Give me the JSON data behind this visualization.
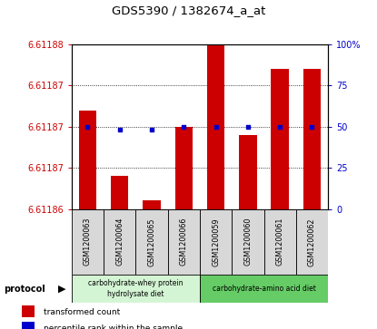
{
  "title": "GDS5390 / 1382674_a_at",
  "samples": [
    "GSM1200063",
    "GSM1200064",
    "GSM1200065",
    "GSM1200066",
    "GSM1200059",
    "GSM1200060",
    "GSM1200061",
    "GSM1200062"
  ],
  "transformed_count": [
    6.611872,
    6.611864,
    6.611861,
    6.61187,
    6.61188,
    6.611869,
    6.611877,
    6.611877
  ],
  "percentile_rank": [
    50,
    48,
    48,
    50,
    50,
    50,
    50,
    50
  ],
  "ymin": 6.61186,
  "ymax": 6.61188,
  "yticks_left": [
    6.61186,
    6.611865,
    6.61187,
    6.611875,
    6.61188
  ],
  "ytick_labels_left": [
    "6.61186",
    "6.61187",
    "6.61187",
    "6.61187",
    "6.61188"
  ],
  "yticks_right": [
    0,
    25,
    50,
    75,
    100
  ],
  "ytick_labels_right": [
    "0",
    "25",
    "50",
    "75",
    "100%"
  ],
  "group1_label": "carbohydrate-whey protein\nhydrolysate diet",
  "group2_label": "carbohydrate-amino acid diet",
  "group1_indices": [
    0,
    1,
    2,
    3
  ],
  "group2_indices": [
    4,
    5,
    6,
    7
  ],
  "group1_color": "#d4f5d4",
  "group2_color": "#66cc66",
  "bar_color": "#cc0000",
  "dot_color": "#0000cc",
  "protocol_label": "protocol",
  "legend_bar_label": "transformed count",
  "legend_dot_label": "percentile rank within the sample",
  "right_axis_color": "#0000cc",
  "left_axis_color": "#cc0000",
  "sample_box_color": "#d8d8d8",
  "plot_bg_color": "#ffffff"
}
